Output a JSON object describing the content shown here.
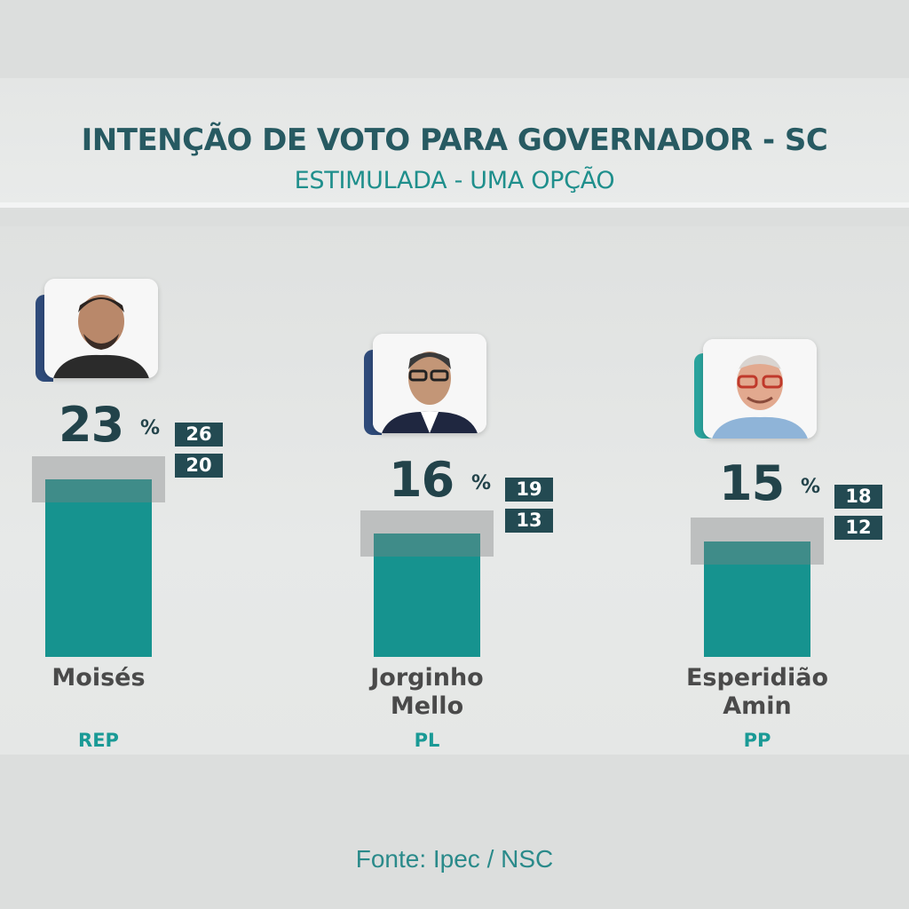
{
  "header": {
    "title": "INTENÇÃO DE VOTO PARA GOVERNADOR - SC",
    "subtitle": "ESTIMULADA - UMA OPÇÃO"
  },
  "footer": {
    "source": "Fonte: Ipec / NSC"
  },
  "percent_sign": "%",
  "colors": {
    "bar": "#16938f",
    "accent_dark": "#234a52",
    "margin_band": "#bdbfbf",
    "party_text": "#1a9a96"
  },
  "candidates": [
    {
      "name_line1": "Moisés",
      "name_line2": "",
      "party": "REP",
      "value": "23",
      "high": "26",
      "low": "20"
    },
    {
      "name_line1": "Jorginho",
      "name_line2": "Mello",
      "party": "PL",
      "value": "16",
      "high": "19",
      "low": "13"
    },
    {
      "name_line1": "Esperidião",
      "name_line2": "Amin",
      "party": "PP",
      "value": "15",
      "high": "18",
      "low": "12"
    }
  ],
  "chart_data": {
    "type": "bar",
    "title": "INTENÇÃO DE VOTO PARA GOVERNADOR - SC",
    "subtitle": "ESTIMULADA - UMA OPÇÃO",
    "categories": [
      "Moisés",
      "Jorginho Mello",
      "Esperidião Amin"
    ],
    "parties": [
      "REP",
      "PL",
      "PP"
    ],
    "values": [
      23,
      16,
      15
    ],
    "upper_bound": [
      26,
      19,
      18
    ],
    "lower_bound": [
      20,
      13,
      12
    ],
    "unit": "%"
  }
}
